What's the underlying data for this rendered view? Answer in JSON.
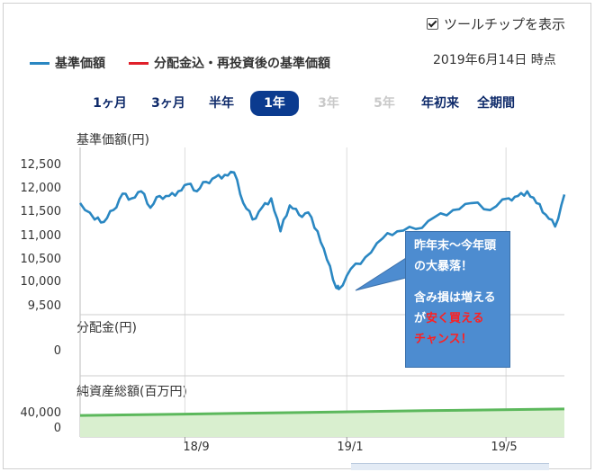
{
  "tooltip_toggle": {
    "label": "ツールチップを表示",
    "checked": true
  },
  "legend": [
    {
      "label": "基準価額",
      "color": "#2a87c2"
    },
    {
      "label": "分配金込・再投資後の基準価額",
      "color": "#e0202a"
    }
  ],
  "as_of_date": "2019年6月14日 時点",
  "periods": [
    {
      "label": "1ヶ月",
      "state": "normal"
    },
    {
      "label": "3ヶ月",
      "state": "normal"
    },
    {
      "label": "半年",
      "state": "normal"
    },
    {
      "label": "1年",
      "state": "active"
    },
    {
      "label": "3年",
      "state": "disabled"
    },
    {
      "label": "5年",
      "state": "disabled"
    },
    {
      "label": "年初来",
      "state": "normal"
    },
    {
      "label": "全期間",
      "state": "normal"
    }
  ],
  "callout": {
    "line1": "昨年末～今年頭",
    "line2": "の大暴落！",
    "line3": "含み損は増える",
    "line4_prefix": "が",
    "line4_highlight": "安く買える",
    "line5": "チャンス！"
  },
  "chart_data": [
    {
      "type": "line",
      "title": "基準価額(円)",
      "color": "#2a87c2",
      "yticks": [
        "12,500",
        "12,000",
        "11,500",
        "11,000",
        "10,500",
        "10,000",
        "9,500"
      ],
      "ylim": [
        9500,
        12500
      ],
      "xticks": [
        "18/9",
        "19/1",
        "19/5"
      ],
      "xlim": [
        "2018-06-14",
        "2019-06-14"
      ],
      "grid": "vertical",
      "x": [
        "2018-06-14",
        "2018-06-25",
        "2018-07-02",
        "2018-07-09",
        "2018-07-16",
        "2018-07-23",
        "2018-07-30",
        "2018-08-06",
        "2018-08-13",
        "2018-08-20",
        "2018-08-27",
        "2018-09-03",
        "2018-09-10",
        "2018-09-17",
        "2018-09-24",
        "2018-10-01",
        "2018-10-08",
        "2018-10-15",
        "2018-10-22",
        "2018-10-29",
        "2018-11-05",
        "2018-11-12",
        "2018-11-19",
        "2018-11-26",
        "2018-12-03",
        "2018-12-10",
        "2018-12-17",
        "2018-12-24",
        "2018-12-26",
        "2019-01-04",
        "2019-01-15",
        "2019-01-28",
        "2019-02-08",
        "2019-02-22",
        "2019-03-08",
        "2019-03-22",
        "2019-04-05",
        "2019-04-19",
        "2019-05-03",
        "2019-05-10",
        "2019-05-17",
        "2019-05-24",
        "2019-05-31",
        "2019-06-07",
        "2019-06-14"
      ],
      "values": [
        11700,
        11350,
        11300,
        11550,
        11900,
        11800,
        11950,
        11600,
        11850,
        11850,
        11950,
        12100,
        11950,
        12150,
        12250,
        12300,
        12350,
        11700,
        11350,
        11600,
        11800,
        11100,
        11650,
        11450,
        11500,
        11100,
        10500,
        9900,
        9870,
        10300,
        10550,
        10950,
        11100,
        11150,
        11400,
        11550,
        11700,
        11550,
        11800,
        11850,
        11950,
        11700,
        11450,
        11200,
        11880
      ]
    },
    {
      "type": "bar",
      "title": "分配金(円)",
      "yticks": [
        "0"
      ],
      "values": []
    },
    {
      "type": "area",
      "title": "純資産総額(百万円)",
      "color": "#5cb85c",
      "yticks": [
        "40,000",
        "0"
      ],
      "ylim": [
        0,
        60000
      ],
      "x": [
        "2018-06-14",
        "2018-09-01",
        "2018-12-01",
        "2019-03-01",
        "2019-06-14"
      ],
      "values": [
        35000,
        38500,
        43000,
        47500,
        52000
      ]
    }
  ]
}
